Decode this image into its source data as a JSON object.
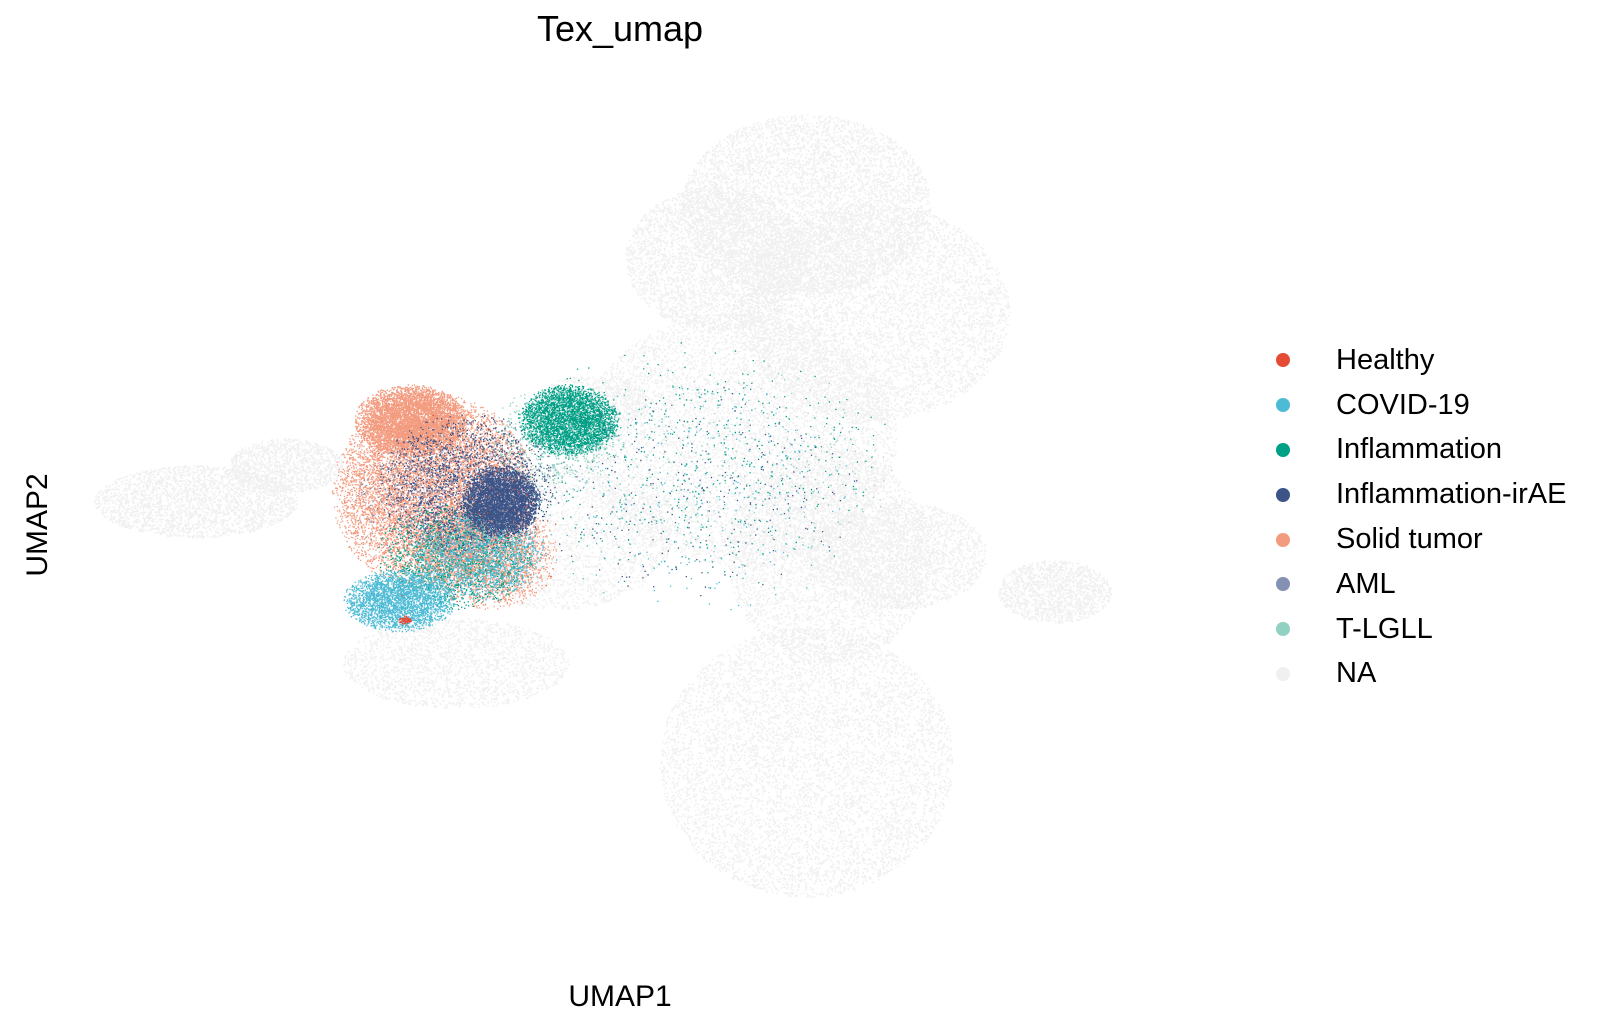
{
  "chart_data": {
    "type": "scatter",
    "title": "Tex_umap",
    "xlabel": "UMAP1",
    "ylabel": "UMAP2",
    "grid": false,
    "axes_visible": false,
    "legend_placement": "right",
    "xlim": [
      0,
      100
    ],
    "ylim": [
      0,
      100
    ],
    "background_category": "NA",
    "categories": [
      {
        "name": "Healthy",
        "color": "#e64b35"
      },
      {
        "name": "COVID-19",
        "color": "#4dbbd5"
      },
      {
        "name": "Inflammation",
        "color": "#00a087"
      },
      {
        "name": "Inflammation-irAE",
        "color": "#3c5488"
      },
      {
        "name": "Solid tumor",
        "color": "#f39b7f"
      },
      {
        "name": "AML",
        "color": "#8491b4"
      },
      {
        "name": "T-LGLL",
        "color": "#91d1c2"
      },
      {
        "name": "NA",
        "color": "#f0f0f0"
      }
    ],
    "series": [
      {
        "name": "NA",
        "regions": [
          {
            "cx": 66,
            "cy": 84,
            "rx": 11,
            "ry": 10,
            "n": 6000
          },
          {
            "cx": 58,
            "cy": 78,
            "rx": 8,
            "ry": 8,
            "n": 3500
          },
          {
            "cx": 72,
            "cy": 72,
            "rx": 12,
            "ry": 12,
            "n": 6000
          },
          {
            "cx": 60,
            "cy": 58,
            "rx": 14,
            "ry": 14,
            "n": 7000
          },
          {
            "cx": 68,
            "cy": 45,
            "rx": 9,
            "ry": 12,
            "n": 4000
          },
          {
            "cx": 66,
            "cy": 22,
            "rx": 13,
            "ry": 15,
            "n": 7000
          },
          {
            "cx": 74,
            "cy": 45,
            "rx": 8,
            "ry": 6,
            "n": 2500
          },
          {
            "cx": 88,
            "cy": 41,
            "rx": 5,
            "ry": 3.5,
            "n": 1400
          },
          {
            "cx": 12,
            "cy": 51,
            "rx": 9,
            "ry": 4,
            "n": 2500
          },
          {
            "cx": 20,
            "cy": 55,
            "rx": 5,
            "ry": 3,
            "n": 1200
          },
          {
            "cx": 35,
            "cy": 33,
            "rx": 10,
            "ry": 5,
            "n": 2000
          },
          {
            "cx": 44,
            "cy": 47,
            "rx": 10,
            "ry": 8,
            "n": 2500
          },
          {
            "cx": 47,
            "cy": 62,
            "rx": 5,
            "ry": 3,
            "n": 700
          }
        ]
      },
      {
        "name": "Solid tumor",
        "regions": [
          {
            "cx": 31,
            "cy": 60,
            "rx": 5,
            "ry": 4,
            "n": 5000
          },
          {
            "cx": 33,
            "cy": 52,
            "rx": 9,
            "ry": 11,
            "n": 9000
          },
          {
            "cx": 38,
            "cy": 45,
            "rx": 6,
            "ry": 6,
            "n": 2500
          }
        ]
      },
      {
        "name": "Inflammation",
        "regions": [
          {
            "cx": 45,
            "cy": 60,
            "rx": 4.5,
            "ry": 4,
            "n": 3800
          },
          {
            "cx": 35,
            "cy": 45,
            "rx": 7,
            "ry": 6,
            "n": 1500
          },
          {
            "cx": 56,
            "cy": 55,
            "rx": 18,
            "ry": 14,
            "n": 500
          }
        ]
      },
      {
        "name": "COVID-19",
        "regions": [
          {
            "cx": 30,
            "cy": 40,
            "rx": 5,
            "ry": 3.5,
            "n": 2800
          },
          {
            "cx": 37,
            "cy": 45,
            "rx": 6,
            "ry": 5,
            "n": 1400
          },
          {
            "cx": 56,
            "cy": 52,
            "rx": 16,
            "ry": 14,
            "n": 300
          }
        ]
      },
      {
        "name": "Inflammation-irAE",
        "regions": [
          {
            "cx": 39,
            "cy": 51,
            "rx": 3.5,
            "ry": 4,
            "n": 4000
          },
          {
            "cx": 36,
            "cy": 53,
            "rx": 8,
            "ry": 8,
            "n": 2000
          },
          {
            "cx": 56,
            "cy": 52,
            "rx": 15,
            "ry": 12,
            "n": 250
          }
        ]
      },
      {
        "name": "AML",
        "regions": [
          {
            "cx": 34,
            "cy": 51,
            "rx": 8,
            "ry": 8,
            "n": 600
          }
        ]
      },
      {
        "name": "T-LGLL",
        "regions": [
          {
            "cx": 44,
            "cy": 58,
            "rx": 6,
            "ry": 6,
            "n": 600
          },
          {
            "cx": 60,
            "cy": 55,
            "rx": 14,
            "ry": 12,
            "n": 250
          }
        ]
      },
      {
        "name": "Healthy",
        "regions": [
          {
            "cx": 30.5,
            "cy": 37.8,
            "rx": 0.6,
            "ry": 0.5,
            "n": 80
          },
          {
            "cx": 36,
            "cy": 50,
            "rx": 10,
            "ry": 12,
            "n": 70
          }
        ]
      }
    ]
  }
}
